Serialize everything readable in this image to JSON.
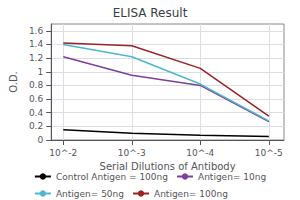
{
  "chart_data": {
    "type": "line",
    "title": "ELISA Result",
    "xlabel": "Serial Dilutions of Antibody",
    "ylabel": "O.D.",
    "x": [
      0.01,
      0.001,
      0.0001,
      1e-05
    ],
    "series": [
      {
        "name": "Control Antigen = 100ng",
        "color": "#000000",
        "values": [
          0.15,
          0.1,
          0.07,
          0.05
        ]
      },
      {
        "name": "Antigen= 10ng",
        "color": "#7b3fa0",
        "values": [
          1.22,
          0.95,
          0.8,
          0.27
        ]
      },
      {
        "name": "Antigen= 50ng",
        "color": "#4db8cc",
        "values": [
          1.4,
          1.22,
          0.82,
          0.28
        ]
      },
      {
        "name": "Antigen= 100ng",
        "color": "#9b2323",
        "values": [
          1.42,
          1.38,
          1.05,
          0.35
        ]
      }
    ],
    "log": "x",
    "xlim": [
      0.015,
      6e-06
    ],
    "xticks": [
      {
        "value": 0.01,
        "label": "10^-2"
      },
      {
        "value": 0.001,
        "label": "10^-3"
      },
      {
        "value": 0.0001,
        "label": "10^-4"
      },
      {
        "value": 1e-05,
        "label": "10^-5"
      }
    ],
    "ylim": [
      0,
      1.7
    ],
    "yticks": [
      0,
      0.2,
      0.4,
      0.6,
      0.8,
      1,
      1.2,
      1.4,
      1.6
    ],
    "grid": true,
    "legend": "bottom"
  }
}
